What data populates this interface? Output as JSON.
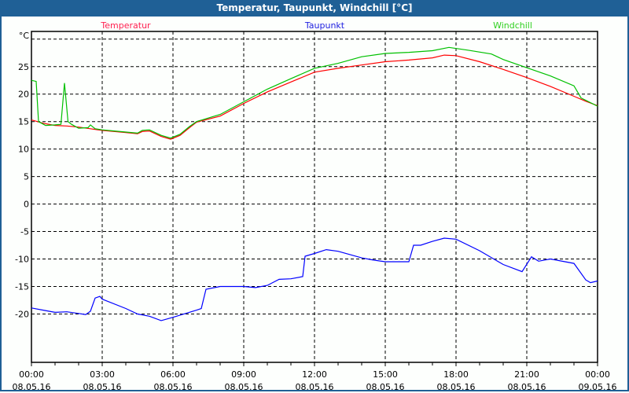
{
  "window": {
    "title": "Temperatur, Taupunkt, Windchill [°C]"
  },
  "chart_data": {
    "type": "line",
    "title": "Temperatur, Taupunkt, Windchill [°C]",
    "ylabel": "°C",
    "ylim": [
      -28.8,
      31.4
    ],
    "xlim": [
      0,
      24
    ],
    "yticks": [
      -20,
      -15,
      -10,
      -5,
      0,
      5,
      10,
      15,
      20,
      25
    ],
    "ygrid": [
      -20,
      -15,
      -10,
      -5,
      0,
      5,
      10,
      15,
      20,
      25,
      30
    ],
    "xticks": [
      {
        "h": 0,
        "time": "00:00",
        "date": "08.05.16"
      },
      {
        "h": 3,
        "time": "03:00",
        "date": "08.05.16"
      },
      {
        "h": 6,
        "time": "06:00",
        "date": "08.05.16"
      },
      {
        "h": 9,
        "time": "09:00",
        "date": "08.05.16"
      },
      {
        "h": 12,
        "time": "12:00",
        "date": "08.05.16"
      },
      {
        "h": 15,
        "time": "15:00",
        "date": "08.05.16"
      },
      {
        "h": 18,
        "time": "18:00",
        "date": "08.05.16"
      },
      {
        "h": 21,
        "time": "21:00",
        "date": "08.05.16"
      },
      {
        "h": 24,
        "time": "00:00",
        "date": "09.05.16"
      }
    ],
    "grid": true,
    "legend": "top",
    "series": [
      {
        "name": "Temperatur",
        "color": "#ff0000",
        "label_color": "#ff2050",
        "x": [
          0,
          0.5,
          1,
          1.5,
          2,
          2.5,
          3,
          3.5,
          4,
          4.5,
          4.7,
          5,
          5.5,
          5.9,
          6.3,
          6.7,
          7,
          8,
          9,
          10,
          11,
          12,
          13,
          14,
          15,
          16,
          17,
          17.5,
          18,
          19,
          20,
          21,
          22,
          23,
          23.5,
          24
        ],
        "y": [
          15.3,
          14.7,
          14.3,
          14.2,
          14.0,
          13.7,
          13.4,
          13.2,
          13.0,
          12.8,
          13.2,
          13.3,
          12.3,
          11.8,
          12.5,
          13.9,
          14.9,
          16.0,
          18.3,
          20.4,
          22.2,
          24.0,
          24.7,
          25.3,
          25.9,
          26.2,
          26.6,
          27.1,
          27.0,
          25.9,
          24.5,
          23.0,
          21.4,
          19.6,
          18.7,
          17.9
        ]
      },
      {
        "name": "Windchill",
        "color": "#00c000",
        "label_color": "#30d020",
        "x": [
          0,
          0.2,
          0.3,
          0.6,
          1,
          1.25,
          1.4,
          1.55,
          1.7,
          2,
          2.4,
          2.5,
          2.7,
          3,
          3.5,
          4,
          4.5,
          4.7,
          5,
          5.5,
          5.9,
          6.3,
          6.7,
          7,
          8,
          9,
          10,
          11,
          12,
          13,
          14,
          15,
          16,
          17,
          17.7,
          18.5,
          19.5,
          20,
          21,
          22,
          23,
          23.3,
          24
        ],
        "y": [
          22.5,
          22.3,
          15.0,
          14.3,
          14.4,
          14.5,
          22.0,
          15.0,
          14.5,
          13.8,
          13.9,
          14.4,
          13.7,
          13.5,
          13.3,
          13.1,
          12.9,
          13.4,
          13.5,
          12.5,
          12.0,
          12.7,
          14.1,
          15.0,
          16.3,
          18.6,
          20.9,
          22.8,
          24.7,
          25.6,
          26.8,
          27.4,
          27.6,
          27.9,
          28.5,
          28.0,
          27.3,
          26.3,
          24.8,
          23.3,
          21.5,
          19.3,
          17.8
        ]
      },
      {
        "name": "Taupunkt",
        "color": "#0000ff",
        "label_color": "#2020e0",
        "x": [
          0,
          0.5,
          1,
          1.5,
          2,
          2.3,
          2.5,
          2.7,
          2.9,
          3,
          4,
          4.5,
          5,
          5.5,
          6,
          7,
          7.2,
          7.4,
          8,
          9,
          9.5,
          10,
          10.5,
          11,
          11.5,
          11.6,
          12,
          12.5,
          13,
          14,
          14.5,
          15,
          16,
          16.2,
          16.5,
          17,
          17.5,
          18,
          19,
          20,
          20.8,
          21.2,
          21.5,
          22,
          23,
          23.5,
          23.7,
          24
        ],
        "y": [
          -18.9,
          -19.3,
          -19.7,
          -19.6,
          -19.9,
          -20.1,
          -19.5,
          -17.1,
          -16.8,
          -17.3,
          -19.0,
          -20.0,
          -20.4,
          -21.2,
          -20.6,
          -19.3,
          -19.0,
          -15.5,
          -15.0,
          -15.0,
          -15.2,
          -14.8,
          -13.7,
          -13.6,
          -13.2,
          -9.5,
          -9.0,
          -8.3,
          -8.6,
          -9.8,
          -10.2,
          -10.5,
          -10.5,
          -7.5,
          -7.5,
          -6.8,
          -6.2,
          -6.4,
          -8.5,
          -11.0,
          -12.3,
          -9.6,
          -10.4,
          -10.0,
          -10.8,
          -13.8,
          -14.3,
          -14.0
        ]
      }
    ]
  }
}
